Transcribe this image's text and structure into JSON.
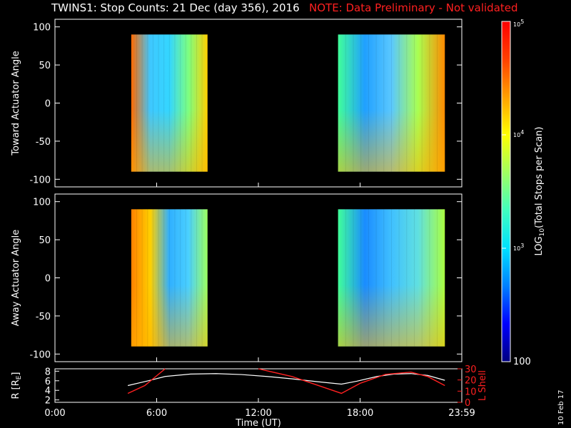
{
  "header": {
    "title": "TWINS1: Stop Counts: 21 Dec (day 356), 2016",
    "note": "NOTE: Data Preliminary - Not validated"
  },
  "stamp": "10 Feb 17",
  "colors": {
    "background": "#000000",
    "note": "#ff2020",
    "lshell": "#ff2020",
    "r_trace": "#ffffff"
  },
  "chart_data": [
    {
      "type": "heatmap",
      "name": "toward",
      "ylabel": "Toward Actuator Angle",
      "xlim": [
        0,
        24
      ],
      "ylim": [
        -110,
        110
      ],
      "yticks": [
        100,
        50,
        0,
        -50,
        -100
      ],
      "ytick_labels": [
        "100",
        "50",
        "0",
        "-50",
        "-100"
      ],
      "blocks": [
        {
          "start": 4.5,
          "end": 9.0,
          "angle_range": [
            -90,
            90
          ]
        },
        {
          "start": 16.7,
          "end": 23.0,
          "angle_range": [
            -90,
            90
          ]
        }
      ]
    },
    {
      "type": "heatmap",
      "name": "away",
      "ylabel": "Away Actuator Angle",
      "xlim": [
        0,
        24
      ],
      "ylim": [
        -110,
        110
      ],
      "yticks": [
        100,
        50,
        0,
        -50,
        -100
      ],
      "ytick_labels": [
        "100",
        "50",
        "0",
        "-50",
        "-100"
      ],
      "blocks": [
        {
          "start": 4.5,
          "end": 9.0,
          "angle_range": [
            -90,
            90
          ]
        },
        {
          "start": 16.7,
          "end": 23.0,
          "angle_range": [
            -90,
            90
          ]
        }
      ]
    },
    {
      "type": "line",
      "name": "orbit",
      "ylabel": "R [R",
      "ylabel_sub": "E",
      "ylabel_end": "]",
      "y2label": "L Shell",
      "xlabel": "Time (UT)",
      "xlim": [
        0,
        24
      ],
      "ylim": [
        1.5,
        8.5
      ],
      "y2lim": [
        0,
        30
      ],
      "yticks": [
        2,
        4,
        6,
        8
      ],
      "ytick_labels": [
        "2",
        "4",
        "6",
        "8"
      ],
      "y2ticks": [
        0,
        10,
        20,
        30
      ],
      "y2tick_labels": [
        "0",
        "10",
        "20",
        "30"
      ],
      "xticks": [
        0,
        6,
        12,
        18,
        24
      ],
      "xtick_labels": [
        "0:00",
        "6:00",
        "12:00",
        "18:00",
        "23:59"
      ],
      "series": [
        {
          "name": "R",
          "axis": "left",
          "x": [
            4.3,
            5.5,
            6.5,
            8.0,
            9.5,
            11.0,
            12.5,
            14.0,
            15.5,
            16.9,
            17.8,
            19.0,
            20.0,
            21.0,
            22.0,
            23.0
          ],
          "y": [
            5.0,
            6.0,
            6.9,
            7.4,
            7.5,
            7.3,
            6.9,
            6.4,
            5.8,
            5.3,
            5.9,
            6.9,
            7.4,
            7.5,
            7.1,
            6.1
          ]
        },
        {
          "name": "L Shell",
          "axis": "right",
          "x": [
            [
              4.3,
              5.3,
              6.5
            ],
            [
              12.0,
              14.0,
              16.9,
              18.0,
              19.5,
              21.0,
              22.0,
              23.0
            ]
          ],
          "y": [
            [
              8,
              15,
              30
            ],
            [
              30,
              23,
              8,
              17,
              25,
              27,
              23,
              15
            ]
          ]
        }
      ]
    }
  ],
  "colorbar": {
    "label": "LOG",
    "label_sub": "10",
    "label_end": "(Total Stops per Scan)",
    "ticks": [
      {
        "value": 100,
        "text": "100",
        "small": false
      },
      {
        "value": 1000,
        "text": "10",
        "sup": "3",
        "small": true
      },
      {
        "value": 10000,
        "text": "10",
        "sup": "4",
        "small": true
      },
      {
        "value": 100000,
        "text": "10",
        "sup": "5",
        "small": true
      }
    ],
    "range": [
      100,
      100000
    ],
    "colors": [
      "#00007f",
      "#0000ff",
      "#0080ff",
      "#00e0ff",
      "#40ffbf",
      "#a0ff60",
      "#ffff00",
      "#ffa000",
      "#ff4000",
      "#ff0000"
    ]
  }
}
